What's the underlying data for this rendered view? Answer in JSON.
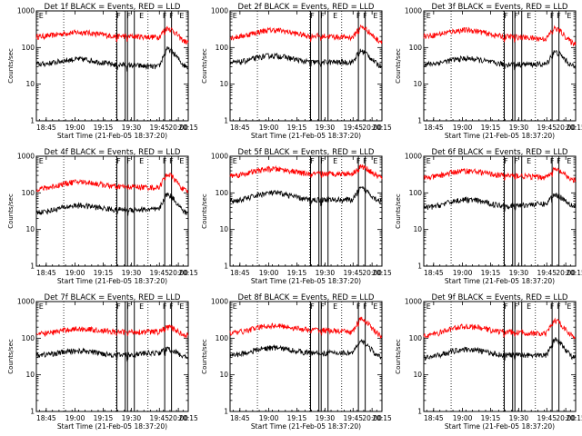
{
  "chart_data": [
    {
      "type": "line",
      "panel": 1,
      "title": "Det 1f BLACK = Events, RED = LLD",
      "lld": [
        200,
        260,
        205,
        195,
        340,
        140
      ],
      "events": [
        35,
        48,
        34,
        30,
        90,
        30
      ]
    },
    {
      "type": "line",
      "panel": 2,
      "title": "Det 2f BLACK = Events, RED = LLD",
      "lld": [
        190,
        300,
        210,
        190,
        360,
        150
      ],
      "events": [
        38,
        60,
        40,
        40,
        80,
        32
      ]
    },
    {
      "type": "line",
      "panel": 3,
      "title": "Det 3f BLACK = Events, RED = LLD",
      "lld": [
        210,
        300,
        200,
        175,
        330,
        130
      ],
      "events": [
        35,
        50,
        35,
        35,
        75,
        30
      ]
    },
    {
      "type": "line",
      "panel": 4,
      "title": "Det 4f BLACK = Events, RED = LLD",
      "lld": [
        130,
        200,
        150,
        140,
        320,
        110
      ],
      "events": [
        30,
        45,
        35,
        35,
        90,
        28
      ]
    },
    {
      "type": "line",
      "panel": 5,
      "title": "Det 5f BLACK = Events, RED = LLD",
      "lld": [
        300,
        450,
        330,
        340,
        520,
        270
      ],
      "events": [
        60,
        100,
        65,
        65,
        130,
        60
      ]
    },
    {
      "type": "line",
      "panel": 6,
      "title": "Det 6f BLACK = Events, RED = LLD",
      "lld": [
        260,
        400,
        300,
        270,
        430,
        220
      ],
      "events": [
        40,
        65,
        45,
        50,
        90,
        45
      ]
    },
    {
      "type": "line",
      "panel": 7,
      "title": "Det 7f BLACK = Events, RED = LLD",
      "lld": [
        130,
        180,
        150,
        150,
        200,
        120
      ],
      "events": [
        35,
        45,
        35,
        40,
        50,
        30
      ]
    },
    {
      "type": "line",
      "panel": 8,
      "title": "Det 8f BLACK = Events, RED = LLD",
      "lld": [
        140,
        220,
        170,
        150,
        330,
        120
      ],
      "events": [
        35,
        55,
        40,
        40,
        80,
        30
      ]
    },
    {
      "type": "line",
      "panel": 9,
      "title": "Det 9f BLACK = Events, RED = LLD",
      "lld": [
        120,
        210,
        150,
        130,
        300,
        110
      ],
      "events": [
        30,
        50,
        35,
        35,
        90,
        30
      ]
    }
  ],
  "shared": {
    "xlabel": "Start Time (21-Feb-05 18:37:20)",
    "ylabel": "Counts/sec",
    "xticks": [
      "18:45",
      "19:00",
      "19:15",
      "19:30",
      "19:45",
      "20:00",
      "20:15"
    ],
    "yticks": [
      "1",
      "10",
      "100",
      "1000"
    ],
    "ylim": [
      1,
      1000
    ],
    "flag_labels": [
      "E",
      "F",
      "F",
      "E",
      "F",
      "F",
      "E"
    ],
    "colors": {
      "events": "#000000",
      "lld": "#ff0000"
    }
  }
}
